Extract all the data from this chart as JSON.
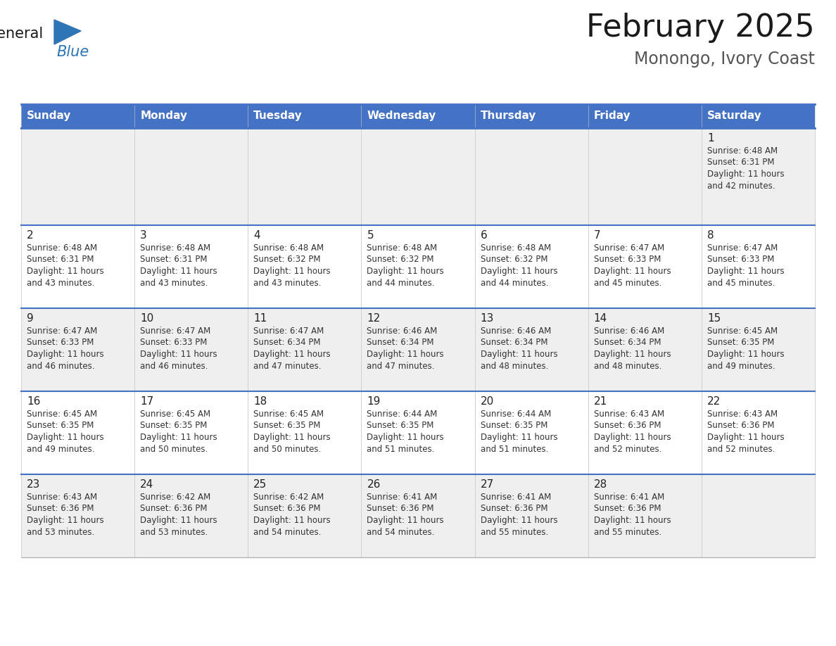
{
  "title": "February 2025",
  "subtitle": "Monongo, Ivory Coast",
  "header_bg": "#4472C4",
  "header_text_color": "#FFFFFF",
  "days_of_week": [
    "Sunday",
    "Monday",
    "Tuesday",
    "Wednesday",
    "Thursday",
    "Friday",
    "Saturday"
  ],
  "row_bg_colors": [
    "#EFEFEF",
    "#FFFFFF",
    "#EFEFEF",
    "#FFFFFF",
    "#EFEFEF"
  ],
  "cell_border_color": "#4472C4",
  "day_number_color": "#222222",
  "info_text_color": "#333333",
  "calendar_data": [
    [
      null,
      null,
      null,
      null,
      null,
      null,
      {
        "day": 1,
        "sunrise": "6:48 AM",
        "sunset": "6:31 PM",
        "daylight": "11 hours and 42 minutes."
      }
    ],
    [
      {
        "day": 2,
        "sunrise": "6:48 AM",
        "sunset": "6:31 PM",
        "daylight": "11 hours and 43 minutes."
      },
      {
        "day": 3,
        "sunrise": "6:48 AM",
        "sunset": "6:31 PM",
        "daylight": "11 hours and 43 minutes."
      },
      {
        "day": 4,
        "sunrise": "6:48 AM",
        "sunset": "6:32 PM",
        "daylight": "11 hours and 43 minutes."
      },
      {
        "day": 5,
        "sunrise": "6:48 AM",
        "sunset": "6:32 PM",
        "daylight": "11 hours and 44 minutes."
      },
      {
        "day": 6,
        "sunrise": "6:48 AM",
        "sunset": "6:32 PM",
        "daylight": "11 hours and 44 minutes."
      },
      {
        "day": 7,
        "sunrise": "6:47 AM",
        "sunset": "6:33 PM",
        "daylight": "11 hours and 45 minutes."
      },
      {
        "day": 8,
        "sunrise": "6:47 AM",
        "sunset": "6:33 PM",
        "daylight": "11 hours and 45 minutes."
      }
    ],
    [
      {
        "day": 9,
        "sunrise": "6:47 AM",
        "sunset": "6:33 PM",
        "daylight": "11 hours and 46 minutes."
      },
      {
        "day": 10,
        "sunrise": "6:47 AM",
        "sunset": "6:33 PM",
        "daylight": "11 hours and 46 minutes."
      },
      {
        "day": 11,
        "sunrise": "6:47 AM",
        "sunset": "6:34 PM",
        "daylight": "11 hours and 47 minutes."
      },
      {
        "day": 12,
        "sunrise": "6:46 AM",
        "sunset": "6:34 PM",
        "daylight": "11 hours and 47 minutes."
      },
      {
        "day": 13,
        "sunrise": "6:46 AM",
        "sunset": "6:34 PM",
        "daylight": "11 hours and 48 minutes."
      },
      {
        "day": 14,
        "sunrise": "6:46 AM",
        "sunset": "6:34 PM",
        "daylight": "11 hours and 48 minutes."
      },
      {
        "day": 15,
        "sunrise": "6:45 AM",
        "sunset": "6:35 PM",
        "daylight": "11 hours and 49 minutes."
      }
    ],
    [
      {
        "day": 16,
        "sunrise": "6:45 AM",
        "sunset": "6:35 PM",
        "daylight": "11 hours and 49 minutes."
      },
      {
        "day": 17,
        "sunrise": "6:45 AM",
        "sunset": "6:35 PM",
        "daylight": "11 hours and 50 minutes."
      },
      {
        "day": 18,
        "sunrise": "6:45 AM",
        "sunset": "6:35 PM",
        "daylight": "11 hours and 50 minutes."
      },
      {
        "day": 19,
        "sunrise": "6:44 AM",
        "sunset": "6:35 PM",
        "daylight": "11 hours and 51 minutes."
      },
      {
        "day": 20,
        "sunrise": "6:44 AM",
        "sunset": "6:35 PM",
        "daylight": "11 hours and 51 minutes."
      },
      {
        "day": 21,
        "sunrise": "6:43 AM",
        "sunset": "6:36 PM",
        "daylight": "11 hours and 52 minutes."
      },
      {
        "day": 22,
        "sunrise": "6:43 AM",
        "sunset": "6:36 PM",
        "daylight": "11 hours and 52 minutes."
      }
    ],
    [
      {
        "day": 23,
        "sunrise": "6:43 AM",
        "sunset": "6:36 PM",
        "daylight": "11 hours and 53 minutes."
      },
      {
        "day": 24,
        "sunrise": "6:42 AM",
        "sunset": "6:36 PM",
        "daylight": "11 hours and 53 minutes."
      },
      {
        "day": 25,
        "sunrise": "6:42 AM",
        "sunset": "6:36 PM",
        "daylight": "11 hours and 54 minutes."
      },
      {
        "day": 26,
        "sunrise": "6:41 AM",
        "sunset": "6:36 PM",
        "daylight": "11 hours and 54 minutes."
      },
      {
        "day": 27,
        "sunrise": "6:41 AM",
        "sunset": "6:36 PM",
        "daylight": "11 hours and 55 minutes."
      },
      {
        "day": 28,
        "sunrise": "6:41 AM",
        "sunset": "6:36 PM",
        "daylight": "11 hours and 55 minutes."
      },
      null
    ]
  ],
  "logo_general_color": "#1a1a1a",
  "logo_blue_color": "#2E75B6",
  "logo_triangle_color": "#2E75B6"
}
